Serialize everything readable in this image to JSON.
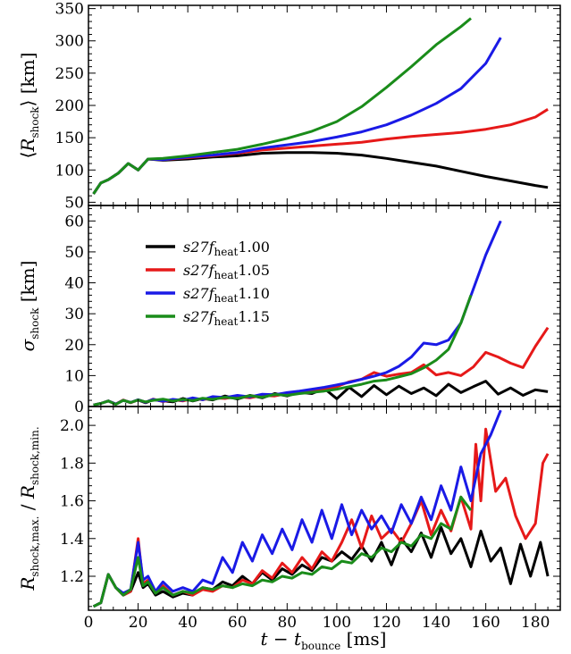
{
  "chart_data": [
    {
      "type": "line",
      "ylabel": "⟨R_shock⟩ [km]",
      "xlim": [
        0,
        190
      ],
      "ylim": [
        45,
        355
      ],
      "yticks": [
        50,
        100,
        150,
        200,
        250,
        300,
        350
      ],
      "grid": false,
      "series": [
        {
          "name": "s27 f_heat 1.00",
          "color": "#000000",
          "x": [
            2,
            5,
            8,
            12,
            16,
            20,
            24,
            30,
            40,
            50,
            60,
            70,
            80,
            90,
            100,
            110,
            120,
            130,
            140,
            150,
            160,
            170,
            180,
            185
          ],
          "y": [
            63,
            80,
            85,
            95,
            110,
            100,
            117,
            115,
            117,
            120,
            122,
            126,
            127,
            127,
            126,
            123,
            118,
            112,
            106,
            98,
            90,
            83,
            76,
            73
          ]
        },
        {
          "name": "s27 f_heat 1.05",
          "color": "#e61919",
          "x": [
            2,
            5,
            8,
            12,
            16,
            20,
            24,
            30,
            40,
            50,
            60,
            70,
            80,
            90,
            100,
            110,
            120,
            130,
            140,
            150,
            160,
            170,
            180,
            185
          ],
          "y": [
            63,
            80,
            85,
            95,
            110,
            100,
            117,
            116,
            119,
            122,
            126,
            131,
            134,
            137,
            140,
            143,
            148,
            152,
            155,
            158,
            163,
            170,
            182,
            194
          ]
        },
        {
          "name": "s27 f_heat 1.10",
          "color": "#1a1ae6",
          "x": [
            2,
            5,
            8,
            12,
            16,
            20,
            24,
            30,
            40,
            50,
            60,
            70,
            80,
            90,
            100,
            110,
            120,
            130,
            140,
            150,
            160,
            166
          ],
          "y": [
            63,
            80,
            85,
            95,
            110,
            100,
            117,
            116,
            120,
            123,
            127,
            134,
            139,
            144,
            151,
            159,
            170,
            185,
            203,
            226,
            265,
            305
          ]
        },
        {
          "name": "s27 f_heat 1.15",
          "color": "#1a8c1a",
          "x": [
            2,
            5,
            8,
            12,
            16,
            20,
            24,
            30,
            40,
            50,
            60,
            70,
            80,
            90,
            100,
            110,
            120,
            130,
            140,
            150,
            154
          ],
          "y": [
            63,
            80,
            85,
            95,
            110,
            100,
            117,
            118,
            122,
            127,
            132,
            140,
            149,
            160,
            175,
            198,
            228,
            260,
            294,
            322,
            335
          ]
        }
      ]
    },
    {
      "type": "line",
      "ylabel": "σ_shock [km]",
      "xlim": [
        0,
        190
      ],
      "ylim": [
        0,
        65
      ],
      "yticks": [
        0,
        10,
        20,
        30,
        40,
        50,
        60
      ],
      "legend": {
        "position": "upper-left",
        "entries": [
          {
            "prefix": "s27",
            "f": "f",
            "sub": "heat",
            "num": "1.00",
            "color": "#000000"
          },
          {
            "prefix": "s27",
            "f": "f",
            "sub": "heat",
            "num": "1.05",
            "color": "#e61919"
          },
          {
            "prefix": "s27",
            "f": "f",
            "sub": "heat",
            "num": "1.10",
            "color": "#1a1ae6"
          },
          {
            "prefix": "s27",
            "f": "f",
            "sub": "heat",
            "num": "1.15",
            "color": "#1a8c1a"
          }
        ]
      },
      "series": [
        {
          "name": "s27 f_heat 1.00",
          "color": "#000000",
          "x": [
            2,
            5,
            8,
            11,
            14,
            17,
            20,
            23,
            26,
            30,
            34,
            38,
            42,
            46,
            50,
            55,
            60,
            65,
            70,
            75,
            80,
            85,
            90,
            95,
            100,
            105,
            110,
            115,
            120,
            125,
            130,
            135,
            140,
            145,
            150,
            155,
            160,
            165,
            170,
            175,
            180,
            185
          ],
          "y": [
            0.5,
            1,
            1.8,
            0.7,
            2,
            1.3,
            2.1,
            1.2,
            2.2,
            1.8,
            1.5,
            2.6,
            1.8,
            2.6,
            2.1,
            3.4,
            2.4,
            3.6,
            2.8,
            4.2,
            3.4,
            4.6,
            4.2,
            5.8,
            2.5,
            6.2,
            3.2,
            6.8,
            3.8,
            6.6,
            4.2,
            6.0,
            3.5,
            7.2,
            4.5,
            6.4,
            8.2,
            4.0,
            6.0,
            3.6,
            5.4,
            4.8
          ]
        },
        {
          "name": "s27 f_heat 1.05",
          "color": "#e61919",
          "x": [
            2,
            5,
            8,
            11,
            14,
            17,
            20,
            23,
            26,
            30,
            34,
            38,
            42,
            46,
            50,
            55,
            60,
            65,
            70,
            75,
            80,
            85,
            90,
            95,
            100,
            105,
            110,
            115,
            120,
            125,
            130,
            135,
            140,
            145,
            150,
            155,
            160,
            165,
            170,
            175,
            180,
            185
          ],
          "y": [
            0.5,
            1,
            1.8,
            0.8,
            2.1,
            1.2,
            2.2,
            1.4,
            2.4,
            1.6,
            2.2,
            1.8,
            2.6,
            2.2,
            2.8,
            2.6,
            3.2,
            2.8,
            3.6,
            3.4,
            4.2,
            4.6,
            5.0,
            5.6,
            6.4,
            8.0,
            8.8,
            11.0,
            9.8,
            10.5,
            11.0,
            13.5,
            10.2,
            11.0,
            10.0,
            12.8,
            17.5,
            16.0,
            14.0,
            12.6,
            19.5,
            25.5
          ]
        },
        {
          "name": "s27 f_heat 1.10",
          "color": "#1a1ae6",
          "x": [
            2,
            5,
            8,
            11,
            14,
            17,
            20,
            23,
            26,
            30,
            34,
            38,
            42,
            46,
            50,
            55,
            60,
            65,
            70,
            75,
            80,
            85,
            90,
            95,
            100,
            105,
            110,
            115,
            120,
            125,
            130,
            135,
            140,
            145,
            150,
            155,
            160,
            166
          ],
          "y": [
            0.5,
            1,
            1.8,
            0.8,
            2,
            1.3,
            2.2,
            1.4,
            2.3,
            1.7,
            2.3,
            2.0,
            2.8,
            2.2,
            3.2,
            2.9,
            3.6,
            3.1,
            4.0,
            3.8,
            4.5,
            5.0,
            5.6,
            6.2,
            7.0,
            7.8,
            8.8,
            9.8,
            11.0,
            13.0,
            16.0,
            20.5,
            20.0,
            21.5,
            27.0,
            38.0,
            49.0,
            60.0
          ]
        },
        {
          "name": "s27 f_heat 1.15",
          "color": "#1a8c1a",
          "x": [
            2,
            5,
            8,
            11,
            14,
            17,
            20,
            23,
            26,
            30,
            34,
            38,
            42,
            46,
            50,
            55,
            60,
            65,
            70,
            75,
            80,
            85,
            90,
            95,
            100,
            105,
            110,
            115,
            120,
            125,
            130,
            135,
            140,
            145,
            150,
            154
          ],
          "y": [
            0.5,
            1,
            1.8,
            0.7,
            2,
            1.3,
            2.1,
            1.5,
            2.0,
            2.4,
            1.8,
            2.3,
            1.9,
            2.7,
            2.3,
            3.0,
            2.6,
            3.5,
            3.0,
            3.9,
            3.6,
            4.2,
            4.6,
            5.0,
            5.6,
            6.4,
            7.2,
            8.2,
            8.6,
            9.6,
            10.6,
            12.5,
            15.0,
            18.5,
            27.0,
            36.0
          ]
        }
      ]
    },
    {
      "type": "line",
      "ylabel": "R_shock,max. / R_shock,min.",
      "xlabel": "t − t_bounce [ms]",
      "xlim": [
        0,
        190
      ],
      "ylim": [
        1.02,
        2.1
      ],
      "xticks": [
        0,
        20,
        40,
        60,
        80,
        100,
        120,
        140,
        160,
        180
      ],
      "yticks": [
        1.2,
        1.4,
        1.6,
        1.8,
        2.0
      ],
      "series": [
        {
          "name": "s27 f_heat 1.00",
          "color": "#000000",
          "x": [
            2,
            5,
            8,
            11,
            14,
            17,
            20,
            22,
            24,
            27,
            30,
            34,
            38,
            42,
            46,
            50,
            54,
            58,
            62,
            66,
            70,
            74,
            78,
            82,
            86,
            90,
            94,
            98,
            102,
            106,
            110,
            114,
            118,
            122,
            126,
            130,
            134,
            138,
            142,
            146,
            150,
            154,
            158,
            162,
            166,
            170,
            174,
            178,
            182,
            185
          ],
          "y": [
            1.04,
            1.06,
            1.21,
            1.14,
            1.1,
            1.12,
            1.22,
            1.14,
            1.16,
            1.1,
            1.12,
            1.09,
            1.11,
            1.1,
            1.14,
            1.13,
            1.17,
            1.15,
            1.2,
            1.16,
            1.22,
            1.18,
            1.24,
            1.21,
            1.26,
            1.23,
            1.3,
            1.28,
            1.33,
            1.29,
            1.36,
            1.28,
            1.38,
            1.26,
            1.4,
            1.33,
            1.43,
            1.3,
            1.46,
            1.32,
            1.4,
            1.25,
            1.44,
            1.28,
            1.35,
            1.16,
            1.37,
            1.2,
            1.38,
            1.2
          ]
        },
        {
          "name": "s27 f_heat 1.05",
          "color": "#e61919",
          "x": [
            2,
            5,
            8,
            11,
            14,
            17,
            20,
            22,
            24,
            27,
            30,
            34,
            38,
            42,
            46,
            50,
            54,
            58,
            62,
            66,
            70,
            74,
            78,
            82,
            86,
            90,
            94,
            98,
            102,
            106,
            110,
            114,
            118,
            122,
            126,
            130,
            134,
            138,
            142,
            146,
            150,
            154,
            156,
            158,
            160,
            164,
            168,
            172,
            176,
            180,
            183,
            185
          ],
          "y": [
            1.04,
            1.06,
            1.21,
            1.14,
            1.1,
            1.12,
            1.4,
            1.16,
            1.18,
            1.12,
            1.15,
            1.1,
            1.12,
            1.1,
            1.13,
            1.12,
            1.15,
            1.14,
            1.18,
            1.16,
            1.23,
            1.19,
            1.27,
            1.22,
            1.3,
            1.24,
            1.33,
            1.28,
            1.38,
            1.5,
            1.35,
            1.52,
            1.4,
            1.45,
            1.38,
            1.48,
            1.6,
            1.42,
            1.55,
            1.44,
            1.62,
            1.45,
            1.9,
            1.6,
            1.98,
            1.65,
            1.72,
            1.52,
            1.4,
            1.48,
            1.8,
            1.85
          ]
        },
        {
          "name": "s27 f_heat 1.10",
          "color": "#1a1ae6",
          "x": [
            2,
            5,
            8,
            11,
            14,
            17,
            20,
            22,
            24,
            27,
            30,
            34,
            38,
            42,
            46,
            50,
            54,
            58,
            62,
            66,
            70,
            74,
            78,
            82,
            86,
            90,
            94,
            98,
            102,
            106,
            110,
            114,
            118,
            122,
            126,
            130,
            134,
            138,
            142,
            146,
            150,
            154,
            158,
            162,
            166
          ],
          "y": [
            1.04,
            1.06,
            1.21,
            1.14,
            1.11,
            1.13,
            1.38,
            1.18,
            1.2,
            1.12,
            1.17,
            1.12,
            1.14,
            1.12,
            1.18,
            1.16,
            1.3,
            1.22,
            1.38,
            1.28,
            1.42,
            1.32,
            1.45,
            1.34,
            1.5,
            1.38,
            1.55,
            1.4,
            1.58,
            1.42,
            1.55,
            1.45,
            1.52,
            1.43,
            1.58,
            1.48,
            1.62,
            1.5,
            1.68,
            1.55,
            1.78,
            1.6,
            1.85,
            1.95,
            2.08
          ]
        },
        {
          "name": "s27 f_heat 1.15",
          "color": "#1a8c1a",
          "x": [
            2,
            5,
            8,
            11,
            14,
            17,
            20,
            22,
            24,
            27,
            30,
            34,
            38,
            42,
            46,
            50,
            54,
            58,
            62,
            66,
            70,
            74,
            78,
            82,
            86,
            90,
            94,
            98,
            102,
            106,
            110,
            114,
            118,
            122,
            126,
            130,
            134,
            138,
            142,
            146,
            150,
            154
          ],
          "y": [
            1.04,
            1.06,
            1.21,
            1.14,
            1.1,
            1.13,
            1.3,
            1.15,
            1.17,
            1.11,
            1.14,
            1.1,
            1.12,
            1.11,
            1.14,
            1.13,
            1.15,
            1.14,
            1.16,
            1.15,
            1.18,
            1.17,
            1.2,
            1.19,
            1.22,
            1.21,
            1.25,
            1.24,
            1.28,
            1.27,
            1.32,
            1.3,
            1.35,
            1.33,
            1.38,
            1.36,
            1.42,
            1.4,
            1.48,
            1.45,
            1.62,
            1.55
          ]
        }
      ]
    }
  ]
}
